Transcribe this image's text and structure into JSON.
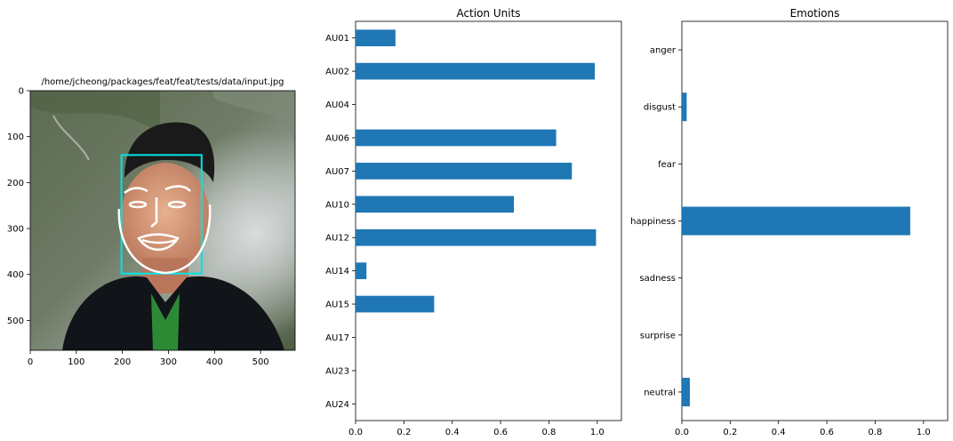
{
  "image_panel": {
    "title": "/home/jcheong/packages/feat/feat/tests/data/input.jpg",
    "x_range": [
      0,
      575
    ],
    "y_range": [
      0,
      565
    ],
    "x_ticks": [
      "0",
      "100",
      "200",
      "300",
      "400",
      "500"
    ],
    "y_ticks": [
      "0",
      "100",
      "200",
      "300",
      "400",
      "500"
    ],
    "face_box": {
      "x0": 198,
      "y0": 140,
      "x1": 372,
      "y1": 398
    },
    "colors": {
      "face_box": "#00e5e5",
      "landmarks": "#ffffff"
    }
  },
  "chart_data": [
    {
      "type": "bar",
      "orientation": "horizontal",
      "title": "Action Units",
      "categories": [
        "AU01",
        "AU02",
        "AU04",
        "AU06",
        "AU07",
        "AU10",
        "AU12",
        "AU14",
        "AU15",
        "AU17",
        "AU23",
        "AU24"
      ],
      "values": [
        0.165,
        0.99,
        0.0,
        0.83,
        0.895,
        0.655,
        0.995,
        0.045,
        0.325,
        0.0,
        0.0,
        0.0
      ],
      "x_ticks": [
        "0.0",
        "0.2",
        "0.4",
        "0.6",
        "0.8",
        "1.0"
      ],
      "xlim": [
        0,
        1.1
      ],
      "color": "#1f77b4",
      "grid": false
    },
    {
      "type": "bar",
      "orientation": "horizontal",
      "title": "Emotions",
      "categories": [
        "anger",
        "disgust",
        "fear",
        "happiness",
        "sadness",
        "surprise",
        "neutral"
      ],
      "values": [
        0.0,
        0.02,
        0.0,
        0.945,
        0.0,
        0.0,
        0.033
      ],
      "x_ticks": [
        "0.0",
        "0.2",
        "0.4",
        "0.6",
        "0.8",
        "1.0"
      ],
      "xlim": [
        0,
        1.1
      ],
      "color": "#1f77b4",
      "grid": false
    }
  ]
}
